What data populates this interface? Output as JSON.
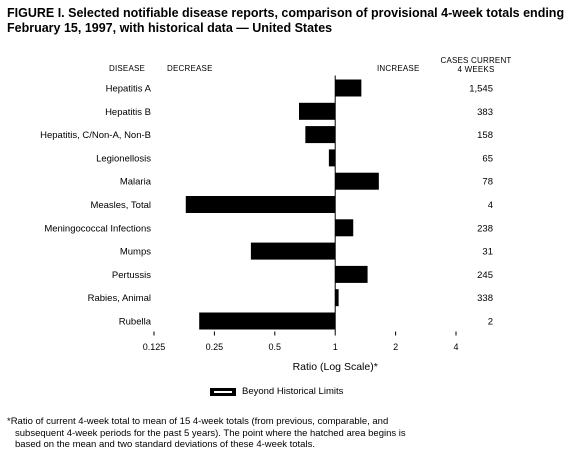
{
  "title": "FIGURE I. Selected notifiable disease reports, comparison of provisional 4-week totals ending February 15, 1997, with historical data — United States",
  "headers": {
    "disease": "DISEASE",
    "decrease": "DECREASE",
    "increase": "INCREASE",
    "cases_line1": "CASES CURRENT",
    "cases_line2": "4 WEEKS"
  },
  "legend": {
    "label": "Beyond Historical Limits"
  },
  "footnote": {
    "line1": "*Ratio of current 4-week total to mean of 15 4-week totals (from previous, comparable, and",
    "line2": "subsequent 4-week periods for the past 5 years). The point where the hatched area begins is",
    "line3": "based on the mean and two standard deviations of these 4-week totals."
  },
  "chart_data": {
    "type": "bar",
    "orientation": "horizontal",
    "xscale": "log2",
    "xlabel": "Ratio (Log Scale)*",
    "xlim": [
      0.125,
      4
    ],
    "xticks": [
      "0.125",
      "0.25",
      "0.5",
      "1",
      "2",
      "4"
    ],
    "baseline": 1,
    "categories": [
      "Hepatitis A",
      "Hepatitis B",
      "Hepatitis, C/Non-A, Non-B",
      "Legionellosis",
      "Malaria",
      "Measles, Total",
      "Meningococcal Infections",
      "Mumps",
      "Pertussis",
      "Rabies, Animal",
      "Rubella"
    ],
    "values": [
      1.35,
      0.66,
      0.71,
      0.93,
      1.65,
      0.18,
      1.23,
      0.38,
      1.45,
      1.04,
      0.21
    ],
    "cases_current_4_weeks": [
      "1,545",
      "383",
      "158",
      "65",
      "78",
      "4",
      "238",
      "31",
      "245",
      "338",
      "2"
    ],
    "grid": false
  }
}
